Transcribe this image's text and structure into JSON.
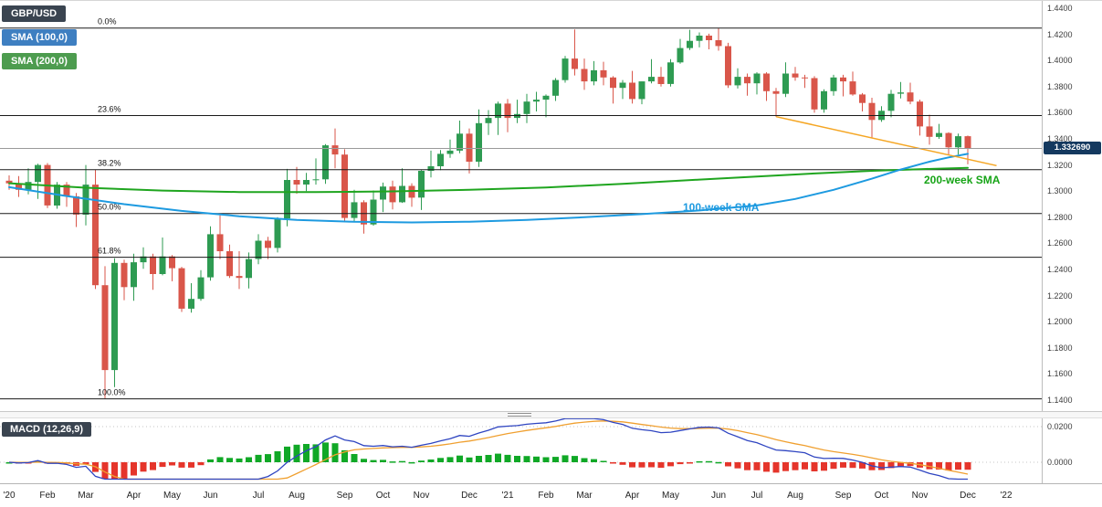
{
  "header": {
    "symbol_label": "GBP/USD",
    "sma100_label": "SMA (100,0)",
    "sma200_label": "SMA (200,0)",
    "macd_label": "MACD (12,26,9)"
  },
  "annotations": {
    "sma100_text": "100-week SMA",
    "sma200_text": "200-week SMA",
    "price_tag": "1.332690"
  },
  "colors": {
    "candle_up": "#2e9b52",
    "candle_down": "#d9564a",
    "sma100": "#1d9ae0",
    "sma200": "#1fa51f",
    "trendline": "#f5a623",
    "fib_line": "#1a1a1a",
    "fib_label": "#111111",
    "last_price_line": "#9a9a9a",
    "hist_up": "#10a826",
    "hist_down": "#e5352b",
    "macd_line": "#2f45c1",
    "macd_signal": "#f0a030"
  },
  "chart_data": {
    "type": "candlestick",
    "symbol": "GBP/USD",
    "indicators": [
      "SMA (100,0)",
      "SMA (200,0)",
      "MACD (12,26,9)"
    ],
    "legend_position": "top-left",
    "grid": false,
    "price_axis": {
      "min": 1.14,
      "max": 1.44,
      "ticks": [
        "1.4400",
        "1.4200",
        "1.4000",
        "1.3800",
        "1.3600",
        "1.3400",
        "1.3200",
        "1.3000",
        "1.2800",
        "1.2600",
        "1.2400",
        "1.2200",
        "1.2000",
        "1.1800",
        "1.1600",
        "1.1400"
      ]
    },
    "macd_axis": {
      "ticks": [
        {
          "label": "0.0200",
          "value": 0.02
        },
        {
          "label": "0.0000",
          "value": 0
        }
      ]
    },
    "x_ticks": [
      {
        "label": "'20",
        "week": 0
      },
      {
        "label": "Feb",
        "week": 4
      },
      {
        "label": "Mar",
        "week": 8
      },
      {
        "label": "Apr",
        "week": 13
      },
      {
        "label": "May",
        "week": 17
      },
      {
        "label": "Jun",
        "week": 21
      },
      {
        "label": "Jul",
        "week": 26
      },
      {
        "label": "Aug",
        "week": 30
      },
      {
        "label": "Sep",
        "week": 35
      },
      {
        "label": "Oct",
        "week": 39
      },
      {
        "label": "Nov",
        "week": 43
      },
      {
        "label": "Dec",
        "week": 48
      },
      {
        "label": "'21",
        "week": 52
      },
      {
        "label": "Feb",
        "week": 56
      },
      {
        "label": "Mar",
        "week": 60
      },
      {
        "label": "Apr",
        "week": 65
      },
      {
        "label": "May",
        "week": 69
      },
      {
        "label": "Jun",
        "week": 74
      },
      {
        "label": "Jul",
        "week": 78
      },
      {
        "label": "Aug",
        "week": 82
      },
      {
        "label": "Sep",
        "week": 87
      },
      {
        "label": "Oct",
        "week": 91
      },
      {
        "label": "Nov",
        "week": 95
      },
      {
        "label": "Dec",
        "week": 100
      },
      {
        "label": "'22",
        "week": 104
      }
    ],
    "fib_levels": [
      {
        "label": "0.0%",
        "price": 1.4248
      },
      {
        "label": "23.6%",
        "price": 1.3578
      },
      {
        "label": "38.2%",
        "price": 1.3164
      },
      {
        "label": "50.0%",
        "price": 1.2829
      },
      {
        "label": "61.8%",
        "price": 1.2494
      },
      {
        "label": "100.0%",
        "price": 1.141
      }
    ],
    "current_price": 1.33269,
    "trendline": {
      "w1": 80,
      "p1": 1.357,
      "w2": 103,
      "p2": 1.3195
    },
    "sma100": [
      [
        0,
        1.303
      ],
      [
        6,
        1.2962
      ],
      [
        12,
        1.29
      ],
      [
        18,
        1.2848
      ],
      [
        24,
        1.2808
      ],
      [
        30,
        1.278
      ],
      [
        36,
        1.2765
      ],
      [
        42,
        1.276
      ],
      [
        48,
        1.2766
      ],
      [
        54,
        1.278
      ],
      [
        60,
        1.28
      ],
      [
        66,
        1.2824
      ],
      [
        72,
        1.2852
      ],
      [
        78,
        1.289
      ],
      [
        82,
        1.294
      ],
      [
        86,
        1.301
      ],
      [
        90,
        1.3095
      ],
      [
        93,
        1.3165
      ],
      [
        96,
        1.3225
      ],
      [
        98,
        1.3258
      ],
      [
        100,
        1.3285
      ]
    ],
    "sma200": [
      [
        0,
        1.306
      ],
      [
        8,
        1.3026
      ],
      [
        16,
        1.3004
      ],
      [
        24,
        1.2993
      ],
      [
        32,
        1.2992
      ],
      [
        40,
        1.2998
      ],
      [
        48,
        1.301
      ],
      [
        56,
        1.3028
      ],
      [
        64,
        1.3055
      ],
      [
        72,
        1.3088
      ],
      [
        78,
        1.3112
      ],
      [
        84,
        1.3135
      ],
      [
        90,
        1.3155
      ],
      [
        95,
        1.3168
      ],
      [
        100,
        1.3178
      ]
    ],
    "candles": [
      [
        1.308,
        1.312,
        1.301,
        1.306
      ],
      [
        1.306,
        1.3115,
        1.2955,
        1.301
      ],
      [
        1.301,
        1.3175,
        1.2975,
        1.307
      ],
      [
        1.307,
        1.321,
        1.294,
        1.32
      ],
      [
        1.32,
        1.3215,
        1.287,
        1.289
      ],
      [
        1.289,
        1.307,
        1.2865,
        1.305
      ],
      [
        1.305,
        1.307,
        1.288,
        1.296
      ],
      [
        1.296,
        1.2985,
        1.2725,
        1.282
      ],
      [
        1.282,
        1.32,
        1.2738,
        1.305
      ],
      [
        1.305,
        1.3165,
        1.225,
        1.228
      ],
      [
        1.228,
        1.2425,
        1.1412,
        1.163
      ],
      [
        1.163,
        1.2485,
        1.15,
        1.245
      ],
      [
        1.245,
        1.2475,
        1.2165,
        1.2265
      ],
      [
        1.2265,
        1.252,
        1.216,
        1.2455
      ],
      [
        1.2455,
        1.257,
        1.2405,
        1.25
      ],
      [
        1.25,
        1.252,
        1.2245,
        1.2365
      ],
      [
        1.2365,
        1.2645,
        1.2355,
        1.25
      ],
      [
        1.25,
        1.251,
        1.231,
        1.241
      ],
      [
        1.241,
        1.242,
        1.2075,
        1.21
      ],
      [
        1.21,
        1.2295,
        1.207,
        1.2175
      ],
      [
        1.2175,
        1.2395,
        1.216,
        1.234
      ],
      [
        1.234,
        1.273,
        1.2315,
        1.267
      ],
      [
        1.267,
        1.2815,
        1.248,
        1.254
      ],
      [
        1.254,
        1.259,
        1.2335,
        1.235
      ],
      [
        1.235,
        1.254,
        1.225,
        1.2335
      ],
      [
        1.2335,
        1.253,
        1.2255,
        1.248
      ],
      [
        1.248,
        1.267,
        1.244,
        1.262
      ],
      [
        1.262,
        1.265,
        1.248,
        1.2565
      ],
      [
        1.2565,
        1.28,
        1.253,
        1.279
      ],
      [
        1.279,
        1.317,
        1.273,
        1.3085
      ],
      [
        1.3085,
        1.3185,
        1.298,
        1.305
      ],
      [
        1.305,
        1.314,
        1.3,
        1.3085
      ],
      [
        1.3085,
        1.325,
        1.305,
        1.309
      ],
      [
        1.309,
        1.336,
        1.3055,
        1.335
      ],
      [
        1.335,
        1.348,
        1.3175,
        1.328
      ],
      [
        1.328,
        1.332,
        1.2765,
        1.2795
      ],
      [
        1.2795,
        1.301,
        1.276,
        1.2915
      ],
      [
        1.2915,
        1.293,
        1.2675,
        1.2745
      ],
      [
        1.2745,
        1.3005,
        1.2735,
        1.2935
      ],
      [
        1.2935,
        1.3065,
        1.284,
        1.3035
      ],
      [
        1.3035,
        1.308,
        1.286,
        1.2915
      ],
      [
        1.2915,
        1.3175,
        1.291,
        1.304
      ],
      [
        1.304,
        1.306,
        1.288,
        1.295
      ],
      [
        1.295,
        1.316,
        1.2855,
        1.3155
      ],
      [
        1.3155,
        1.331,
        1.3105,
        1.319
      ],
      [
        1.319,
        1.3315,
        1.316,
        1.3285
      ],
      [
        1.3285,
        1.3395,
        1.3255,
        1.331
      ],
      [
        1.331,
        1.354,
        1.329,
        1.344
      ],
      [
        1.344,
        1.348,
        1.3135,
        1.3225
      ],
      [
        1.3225,
        1.3625,
        1.3185,
        1.352
      ],
      [
        1.352,
        1.362,
        1.343,
        1.356
      ],
      [
        1.356,
        1.3685,
        1.343,
        1.367
      ],
      [
        1.367,
        1.3705,
        1.345,
        1.356
      ],
      [
        1.356,
        1.37,
        1.352,
        1.359
      ],
      [
        1.359,
        1.3745,
        1.352,
        1.3685
      ],
      [
        1.3685,
        1.376,
        1.361,
        1.37
      ],
      [
        1.37,
        1.374,
        1.3565,
        1.373
      ],
      [
        1.373,
        1.3865,
        1.369,
        1.385
      ],
      [
        1.385,
        1.4035,
        1.383,
        1.4015
      ],
      [
        1.4015,
        1.4237,
        1.3885,
        1.3935
      ],
      [
        1.3935,
        1.4015,
        1.3775,
        1.384
      ],
      [
        1.384,
        1.3995,
        1.381,
        1.3925
      ],
      [
        1.3925,
        1.399,
        1.381,
        1.387
      ],
      [
        1.387,
        1.388,
        1.367,
        1.379
      ],
      [
        1.379,
        1.385,
        1.3705,
        1.383
      ],
      [
        1.383,
        1.392,
        1.367,
        1.3705
      ],
      [
        1.3705,
        1.384,
        1.3665,
        1.384
      ],
      [
        1.384,
        1.401,
        1.3825,
        1.3875
      ],
      [
        1.3875,
        1.395,
        1.38,
        1.382
      ],
      [
        1.382,
        1.401,
        1.38,
        1.3985
      ],
      [
        1.3985,
        1.4165,
        1.3975,
        1.4095
      ],
      [
        1.4095,
        1.4235,
        1.408,
        1.415
      ],
      [
        1.415,
        1.4215,
        1.41,
        1.419
      ],
      [
        1.419,
        1.4205,
        1.4085,
        1.4155
      ],
      [
        1.4155,
        1.4248,
        1.4075,
        1.411
      ],
      [
        1.411,
        1.4135,
        1.379,
        1.381
      ],
      [
        1.381,
        1.394,
        1.3785,
        1.3875
      ],
      [
        1.3875,
        1.39,
        1.373,
        1.3825
      ],
      [
        1.3825,
        1.391,
        1.374,
        1.39
      ],
      [
        1.39,
        1.391,
        1.369,
        1.3765
      ],
      [
        1.3765,
        1.379,
        1.357,
        1.3745
      ],
      [
        1.3745,
        1.3985,
        1.372,
        1.39
      ],
      [
        1.39,
        1.395,
        1.3845,
        1.387
      ],
      [
        1.387,
        1.389,
        1.379,
        1.3865
      ],
      [
        1.3865,
        1.388,
        1.36,
        1.3625
      ],
      [
        1.3625,
        1.378,
        1.36,
        1.3765
      ],
      [
        1.3765,
        1.389,
        1.373,
        1.387
      ],
      [
        1.387,
        1.389,
        1.3725,
        1.384
      ],
      [
        1.384,
        1.3915,
        1.373,
        1.374
      ],
      [
        1.374,
        1.375,
        1.361,
        1.3675
      ],
      [
        1.3675,
        1.3715,
        1.341,
        1.3545
      ],
      [
        1.3545,
        1.365,
        1.353,
        1.3615
      ],
      [
        1.3615,
        1.3775,
        1.3565,
        1.3745
      ],
      [
        1.3745,
        1.3835,
        1.371,
        1.3755
      ],
      [
        1.3755,
        1.383,
        1.3665,
        1.3685
      ],
      [
        1.3685,
        1.37,
        1.3425,
        1.3495
      ],
      [
        1.3495,
        1.3585,
        1.3355,
        1.3415
      ],
      [
        1.3415,
        1.3515,
        1.34,
        1.3445
      ],
      [
        1.3445,
        1.345,
        1.3275,
        1.3335
      ],
      [
        1.3335,
        1.344,
        1.328,
        1.342
      ],
      [
        1.342,
        1.3425,
        1.3205,
        1.3327
      ]
    ]
  }
}
